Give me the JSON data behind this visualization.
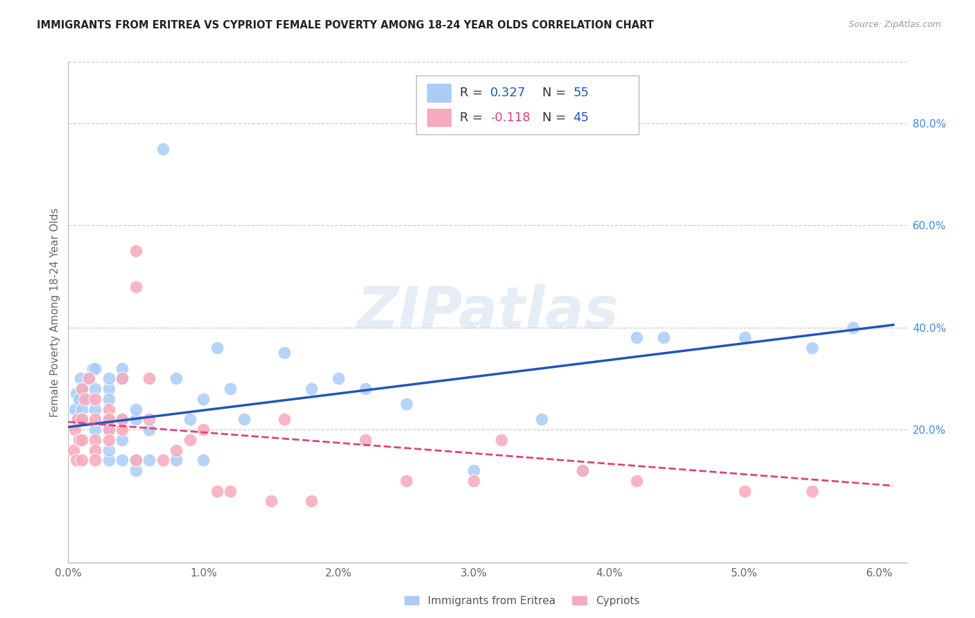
{
  "title": "IMMIGRANTS FROM ERITREA VS CYPRIOT FEMALE POVERTY AMONG 18-24 YEAR OLDS CORRELATION CHART",
  "source": "Source: ZipAtlas.com",
  "ylabel": "Female Poverty Among 18-24 Year Olds",
  "legend_label1": "Immigrants from Eritrea",
  "legend_label2": "Cypriots",
  "r1": 0.327,
  "n1": 55,
  "r2": -0.118,
  "n2": 45,
  "blue_color": "#aaccf7",
  "pink_color": "#f7aabb",
  "blue_line_color": "#2255bb",
  "pink_line_color": "#dd4477",
  "xlim": [
    0.0,
    0.062
  ],
  "ylim": [
    -0.06,
    0.92
  ],
  "right_yticks": [
    0.2,
    0.4,
    0.6,
    0.8
  ],
  "right_ytick_labels": [
    "20.0%",
    "40.0%",
    "60.0%",
    "80.0%"
  ],
  "xtick_values": [
    0.0,
    0.01,
    0.02,
    0.03,
    0.04,
    0.05,
    0.06
  ],
  "xtick_labels": [
    "0.0%",
    "1.0%",
    "2.0%",
    "3.0%",
    "4.0%",
    "5.0%",
    "6.0%"
  ],
  "watermark_text": "ZIPatlas",
  "blue_x": [
    0.0005,
    0.0006,
    0.0007,
    0.0008,
    0.0009,
    0.001,
    0.001,
    0.001,
    0.0015,
    0.0015,
    0.0018,
    0.002,
    0.002,
    0.002,
    0.002,
    0.003,
    0.003,
    0.003,
    0.003,
    0.003,
    0.003,
    0.003,
    0.004,
    0.004,
    0.004,
    0.004,
    0.004,
    0.005,
    0.005,
    0.005,
    0.005,
    0.006,
    0.006,
    0.007,
    0.008,
    0.008,
    0.009,
    0.01,
    0.01,
    0.011,
    0.012,
    0.013,
    0.016,
    0.018,
    0.02,
    0.022,
    0.025,
    0.03,
    0.035,
    0.038,
    0.042,
    0.044,
    0.05,
    0.055,
    0.058
  ],
  "blue_y": [
    0.24,
    0.27,
    0.22,
    0.26,
    0.3,
    0.24,
    0.28,
    0.22,
    0.26,
    0.3,
    0.32,
    0.2,
    0.24,
    0.28,
    0.32,
    0.28,
    0.3,
    0.22,
    0.26,
    0.2,
    0.14,
    0.16,
    0.3,
    0.32,
    0.22,
    0.18,
    0.14,
    0.22,
    0.24,
    0.14,
    0.12,
    0.2,
    0.14,
    0.75,
    0.3,
    0.14,
    0.22,
    0.26,
    0.14,
    0.36,
    0.28,
    0.22,
    0.35,
    0.28,
    0.3,
    0.28,
    0.25,
    0.12,
    0.22,
    0.12,
    0.38,
    0.38,
    0.38,
    0.36,
    0.4
  ],
  "pink_x": [
    0.0004,
    0.0005,
    0.0006,
    0.0007,
    0.0008,
    0.001,
    0.001,
    0.001,
    0.001,
    0.0012,
    0.0015,
    0.002,
    0.002,
    0.002,
    0.002,
    0.002,
    0.003,
    0.003,
    0.003,
    0.003,
    0.004,
    0.004,
    0.004,
    0.005,
    0.005,
    0.005,
    0.006,
    0.006,
    0.007,
    0.008,
    0.009,
    0.01,
    0.011,
    0.012,
    0.015,
    0.016,
    0.018,
    0.022,
    0.025,
    0.03,
    0.032,
    0.038,
    0.042,
    0.05,
    0.055
  ],
  "pink_y": [
    0.16,
    0.2,
    0.14,
    0.22,
    0.18,
    0.28,
    0.22,
    0.18,
    0.14,
    0.26,
    0.3,
    0.22,
    0.18,
    0.16,
    0.26,
    0.14,
    0.24,
    0.2,
    0.22,
    0.18,
    0.3,
    0.2,
    0.22,
    0.55,
    0.48,
    0.14,
    0.3,
    0.22,
    0.14,
    0.16,
    0.18,
    0.2,
    0.08,
    0.08,
    0.06,
    0.22,
    0.06,
    0.18,
    0.1,
    0.1,
    0.18,
    0.12,
    0.1,
    0.08,
    0.08
  ],
  "blue_trend_x": [
    0.0,
    0.061
  ],
  "blue_trend_y": [
    0.205,
    0.405
  ],
  "pink_trend_x": [
    0.0,
    0.061
  ],
  "pink_trend_y": [
    0.215,
    0.09
  ]
}
